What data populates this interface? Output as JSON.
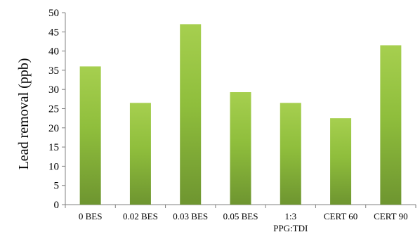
{
  "chart_data": {
    "type": "bar",
    "title": "",
    "xlabel": "",
    "ylabel": "Lead removal (ppb)",
    "ylim": [
      0,
      50
    ],
    "yticks": [
      0,
      5,
      10,
      15,
      20,
      25,
      30,
      35,
      40,
      45,
      50
    ],
    "grid": false,
    "legend": "none",
    "categories": [
      [
        "0 BES"
      ],
      [
        "0.02 BES"
      ],
      [
        "0.03 BES"
      ],
      [
        "0.05 BES"
      ],
      [
        "1:3",
        "PPG:TDI"
      ],
      [
        "CERT 60"
      ],
      [
        "CERT 90"
      ]
    ],
    "values": [
      36,
      26.5,
      47,
      29.3,
      26.5,
      22.5,
      41.5
    ],
    "colors": {
      "bar_top": "#a6cf4f",
      "bar_mid": "#8fbe3c",
      "bar_bottom": "#6e9530",
      "axis": "#808080"
    }
  }
}
